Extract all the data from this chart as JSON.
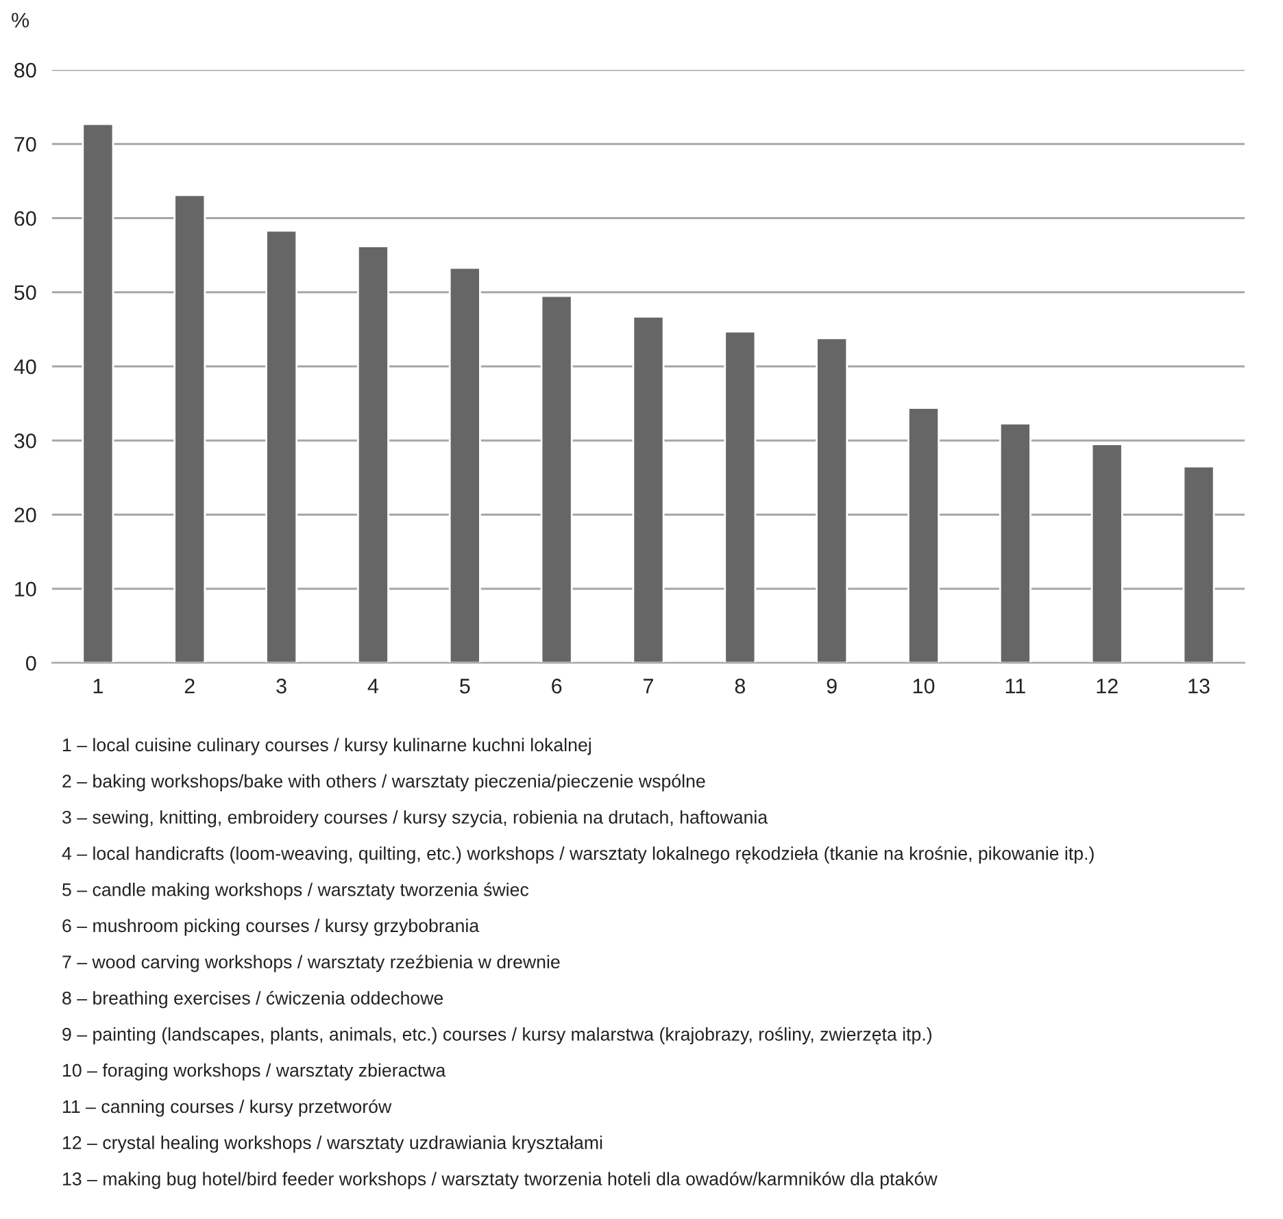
{
  "chart_data": {
    "type": "bar",
    "ylabel": "%",
    "categories": [
      "1",
      "2",
      "3",
      "4",
      "5",
      "6",
      "7",
      "8",
      "9",
      "10",
      "11",
      "12",
      "13"
    ],
    "values": [
      72.7,
      63.1,
      58.3,
      56.2,
      53.3,
      49.5,
      46.7,
      44.7,
      43.8,
      34.4,
      32.3,
      29.5,
      26.5
    ],
    "color": "#666666",
    "ylim": [
      0,
      80
    ],
    "yticks": [
      0,
      10,
      20,
      30,
      40,
      50,
      60,
      70,
      80
    ],
    "grid": "y",
    "legend": false,
    "annotations": [
      "1 – local cuisine culinary courses / kursy kulinarne kuchni lokalnej",
      "2 – baking workshops/bake with others / warsztaty pieczenia/pieczenie wspólne",
      "3 – sewing, knitting, embroidery courses / kursy szycia, robienia na drutach, haftowania",
      "4 – local handicrafts (loom-weaving, quilting, etc.) workshops / warsztaty lokalnego rękodzieła (tkanie na krośnie, pikowanie itp.)",
      "5 – candle making workshops / warsztaty tworzenia świec",
      "6 – mushroom picking courses / kursy grzybobrania",
      "7 – wood carving workshops / warsztaty rzeźbienia w drewnie",
      "8 – breathing exercises / ćwiczenia oddechowe",
      "9 – painting (landscapes, plants, animals, etc.) courses / kursy malarstwa (krajobrazy, rośliny, zwierzęta itp.)",
      "10 – foraging workshops / warsztaty zbieractwa",
      "11 – canning courses / kursy przetworów",
      "12 – crystal healing workshops / warsztaty uzdrawiania kryształami",
      "13 – making bug hotel/bird feeder workshops / warsztaty tworzenia hoteli dla owadów/karmników dla ptaków"
    ]
  }
}
